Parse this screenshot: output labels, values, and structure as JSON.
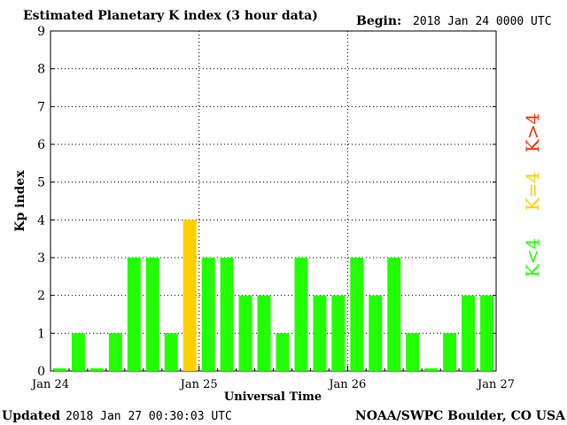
{
  "header": {
    "title": "Estimated Planetary K index (3 hour data)",
    "begin_label": "Begin:",
    "begin_value": "2018 Jan 24 0000 UTC"
  },
  "footer": {
    "updated_label": "Updated",
    "updated_value": "2018 Jan 27 00:30:03 UTC",
    "source": "NOAA/SWPC Boulder, CO USA"
  },
  "colors": {
    "below4": "#22ff00",
    "equal4": "#ffd000",
    "above4": "#ff2a00",
    "frame": "#000000"
  },
  "legend": {
    "above4": "K>4",
    "equal4": "K=4",
    "below4": "K<4"
  },
  "chart_data": {
    "type": "bar",
    "title": "Estimated Planetary K index (3 hour data)",
    "xlabel": "Universal Time",
    "ylabel": "Kp index",
    "ylim": [
      0,
      9
    ],
    "yticks": [
      "0",
      "1",
      "2",
      "3",
      "4",
      "5",
      "6",
      "7",
      "8",
      "9"
    ],
    "xticks": [
      "Jan 24",
      "Jan 25",
      "Jan 26",
      "Jan 27"
    ],
    "interval_hours": 3,
    "grid": "dotted vertical at day boundaries, dotted horizontal at each integer",
    "values": [
      0,
      1,
      0,
      1,
      3,
      3,
      1,
      4,
      3,
      3,
      2,
      2,
      1,
      3,
      2,
      2,
      3,
      2,
      3,
      1,
      0,
      1,
      2,
      2
    ]
  }
}
